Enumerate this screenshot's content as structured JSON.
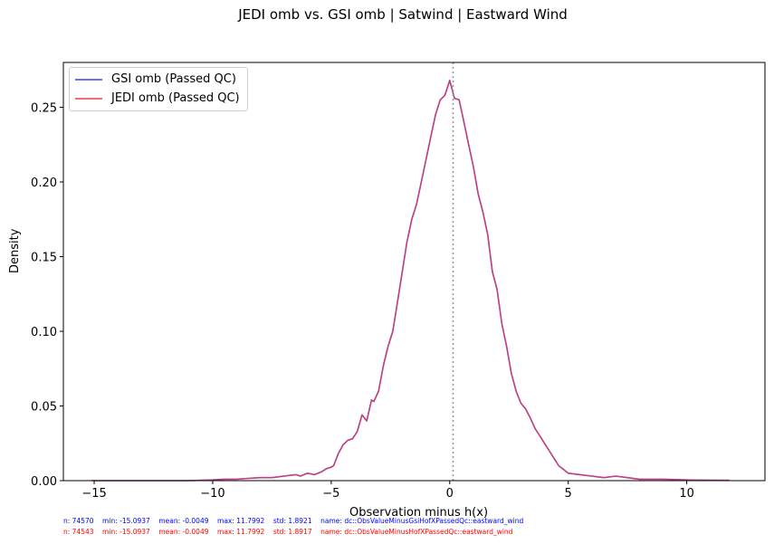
{
  "chart_data": {
    "type": "line",
    "title": "JEDI omb vs. GSI omb | Satwind | Eastward Wind",
    "xlabel": "Observation minus h(x)",
    "ylabel": "Density",
    "xlim": [
      -16.3,
      13.3
    ],
    "ylim": [
      0.0,
      0.28
    ],
    "xticks": [
      -15,
      -10,
      -5,
      0,
      5,
      10
    ],
    "xtick_labels": [
      "−15",
      "−10",
      "−5",
      "0",
      "5",
      "10"
    ],
    "yticks": [
      0.0,
      0.05,
      0.1,
      0.15,
      0.2,
      0.25
    ],
    "ytick_labels": [
      "0.00",
      "0.05",
      "0.10",
      "0.15",
      "0.20",
      "0.25"
    ],
    "grid": false,
    "legend_position": "upper left",
    "vline": {
      "x": 0,
      "style": "dotted",
      "color": "#808080"
    },
    "x": [
      -15.1,
      -14,
      -13,
      -12,
      -11,
      -10,
      -9.5,
      -9,
      -8.5,
      -8,
      -7.5,
      -7,
      -6.5,
      -6.3,
      -6,
      -5.7,
      -5.4,
      -5.2,
      -5.0,
      -4.9,
      -4.7,
      -4.5,
      -4.3,
      -4.1,
      -3.9,
      -3.7,
      -3.5,
      -3.3,
      -3.2,
      -3.0,
      -2.8,
      -2.6,
      -2.4,
      -2.2,
      -2.0,
      -1.8,
      -1.6,
      -1.4,
      -1.2,
      -1.0,
      -0.8,
      -0.6,
      -0.4,
      -0.2,
      0.0,
      0.2,
      0.4,
      0.6,
      0.8,
      1.0,
      1.2,
      1.4,
      1.6,
      1.8,
      2.0,
      2.2,
      2.4,
      2.6,
      2.8,
      3.0,
      3.2,
      3.4,
      3.6,
      3.8,
      4.0,
      4.2,
      4.4,
      4.6,
      5.0,
      5.5,
      6.0,
      6.5,
      7.0,
      7.5,
      8.0,
      9.0,
      10.0,
      11.0,
      11.8
    ],
    "series": [
      {
        "name": "GSI omb (Passed QC)",
        "color": "#0000ff",
        "values": [
          0.0,
          0.0,
          0.0,
          0.0,
          0.0,
          0.0005,
          0.001,
          0.001,
          0.0015,
          0.002,
          0.002,
          0.003,
          0.004,
          0.003,
          0.005,
          0.004,
          0.006,
          0.008,
          0.009,
          0.01,
          0.018,
          0.024,
          0.027,
          0.028,
          0.033,
          0.044,
          0.04,
          0.054,
          0.053,
          0.06,
          0.077,
          0.09,
          0.1,
          0.12,
          0.14,
          0.16,
          0.175,
          0.185,
          0.2,
          0.215,
          0.23,
          0.245,
          0.255,
          0.258,
          0.268,
          0.256,
          0.255,
          0.24,
          0.225,
          0.21,
          0.192,
          0.18,
          0.165,
          0.14,
          0.128,
          0.105,
          0.09,
          0.072,
          0.06,
          0.052,
          0.048,
          0.042,
          0.035,
          0.03,
          0.025,
          0.02,
          0.015,
          0.01,
          0.005,
          0.004,
          0.003,
          0.002,
          0.003,
          0.002,
          0.001,
          0.001,
          0.0005,
          0.0003,
          0.0002
        ]
      },
      {
        "name": "JEDI omb (Passed QC)",
        "color": "#ff0000",
        "values": [
          0.0,
          0.0,
          0.0,
          0.0,
          0.0,
          0.0005,
          0.001,
          0.001,
          0.0015,
          0.002,
          0.002,
          0.003,
          0.004,
          0.003,
          0.005,
          0.004,
          0.006,
          0.008,
          0.009,
          0.01,
          0.018,
          0.024,
          0.027,
          0.028,
          0.033,
          0.044,
          0.04,
          0.054,
          0.053,
          0.06,
          0.077,
          0.09,
          0.1,
          0.12,
          0.14,
          0.16,
          0.175,
          0.185,
          0.2,
          0.215,
          0.23,
          0.245,
          0.255,
          0.258,
          0.268,
          0.256,
          0.255,
          0.24,
          0.225,
          0.21,
          0.192,
          0.18,
          0.165,
          0.14,
          0.128,
          0.105,
          0.09,
          0.072,
          0.06,
          0.052,
          0.048,
          0.042,
          0.035,
          0.03,
          0.025,
          0.02,
          0.015,
          0.01,
          0.005,
          0.004,
          0.003,
          0.002,
          0.003,
          0.002,
          0.001,
          0.001,
          0.0005,
          0.0003,
          0.0002
        ]
      }
    ]
  },
  "legend": {
    "items": [
      {
        "label": "GSI omb (Passed QC)",
        "color": "#7070ee"
      },
      {
        "label": "JEDI omb (Passed QC)",
        "color": "#ee7070"
      }
    ]
  },
  "stats": {
    "gsi": "n: 74570    min: -15.0937    mean: -0.0049    max: 11.7992    std: 1.8921    name: dc::ObsValueMinusGsiHofXPassedQc::eastward_wind",
    "jedi": "n: 74543    min: -15.0937    mean: -0.0049    max: 11.7992    std: 1.8917    name: dc::ObsValueMinusHofXPassedQc::eastward_wind"
  }
}
